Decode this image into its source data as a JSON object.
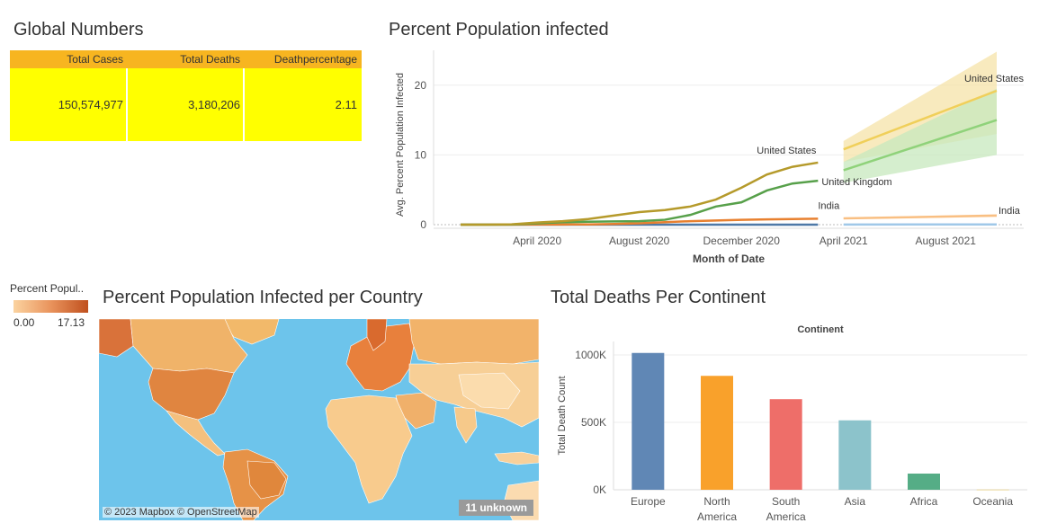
{
  "global": {
    "title": "Global Numbers",
    "headers": [
      "Total Cases",
      "Total Deaths",
      "Deathpercentage"
    ],
    "values": [
      "150,574,977",
      "3,180,206",
      "2.11"
    ]
  },
  "line_chart_title": "Percent Population infected",
  "map": {
    "title": "Percent Population Infected per Country",
    "legend_title": "Percent Popul..",
    "legend_min": "0.00",
    "legend_max": "17.13",
    "credit": "© 2023 Mapbox © OpenStreetMap",
    "unknown": "11 unknown"
  },
  "bar_chart_title": "Total Deaths Per Continent",
  "chart_data": [
    {
      "type": "line",
      "ylabel": "Avg. Percent Population Infected",
      "xlabel": "Month of Date",
      "ylim": [
        0,
        25
      ],
      "yticks": [
        "0",
        "10",
        "20"
      ],
      "xticks": [
        "April 2020",
        "August 2020",
        "December 2020",
        "April 2021",
        "August 2021"
      ],
      "x": [
        "2020-01",
        "2020-02",
        "2020-03",
        "2020-04",
        "2020-05",
        "2020-06",
        "2020-07",
        "2020-08",
        "2020-09",
        "2020-10",
        "2020-11",
        "2020-12",
        "2021-01",
        "2021-02",
        "2021-03"
      ],
      "series": [
        {
          "name": "United States",
          "color": "#b59a2b",
          "values": [
            0,
            0,
            0.05,
            0.3,
            0.5,
            0.8,
            1.3,
            1.8,
            2.1,
            2.6,
            3.6,
            5.3,
            7.2,
            8.3,
            8.9
          ]
        },
        {
          "name": "United Kingdom",
          "color": "#57a04a",
          "values": [
            0,
            0,
            0.02,
            0.2,
            0.35,
            0.42,
            0.46,
            0.5,
            0.7,
            1.4,
            2.6,
            3.2,
            4.9,
            5.9,
            6.3
          ]
        },
        {
          "name": "India",
          "color": "#e8802f",
          "values": [
            0,
            0,
            0,
            0.01,
            0.02,
            0.04,
            0.1,
            0.2,
            0.35,
            0.5,
            0.6,
            0.7,
            0.75,
            0.8,
            0.85
          ]
        },
        {
          "name": "",
          "color": "#4e79a7",
          "values": [
            0,
            0,
            0,
            0,
            0,
            0,
            0,
            0,
            0,
            0,
            0,
            0,
            0,
            0,
            0
          ]
        }
      ],
      "forecast_x": [
        "2021-04",
        "2021-10"
      ],
      "forecast": [
        {
          "name": "United States",
          "color": "#f0cf5a",
          "band_color": "#f5e3a8",
          "values": [
            10.8,
            19.2
          ],
          "low": [
            9.0,
            13.0
          ],
          "high": [
            12.0,
            24.8
          ]
        },
        {
          "name": "",
          "color": "#8fd27a",
          "band_color": "#c7e8bd",
          "values": [
            7.8,
            15.0
          ],
          "low": [
            6.0,
            10.0
          ],
          "high": [
            9.0,
            19.5
          ]
        },
        {
          "name": "India",
          "color": "#f9bf82",
          "band_color": "#fde3c7",
          "values": [
            0.9,
            1.3
          ],
          "low": [
            0.8,
            1.1
          ],
          "high": [
            1.0,
            1.5
          ]
        },
        {
          "name": "",
          "color": "#a0c8e8",
          "band_color": "#d3e6f5",
          "values": [
            0.02,
            0.04
          ],
          "low": [
            0,
            0
          ],
          "high": [
            0.05,
            0.08
          ]
        }
      ],
      "labels": [
        {
          "series": "United States",
          "text": "United States"
        },
        {
          "series": "United Kingdom",
          "text": "United Kingdom"
        },
        {
          "series": "India",
          "text": "India"
        },
        {
          "series": "United States forecast",
          "text": "United States"
        },
        {
          "series": "India forecast",
          "text": "India"
        }
      ]
    },
    {
      "type": "bar",
      "title": "Continent",
      "ylabel": "Total Death Count",
      "ylim": [
        0,
        1100000
      ],
      "yticks": [
        "0K",
        "500K",
        "1000K"
      ],
      "categories": [
        "Europe",
        "North America",
        "South America",
        "Asia",
        "Africa",
        "Oceania"
      ],
      "category_lines": [
        [
          "Europe"
        ],
        [
          "North",
          "America"
        ],
        [
          "South",
          "America"
        ],
        [
          "Asia"
        ],
        [
          "Africa"
        ],
        [
          "Oceania"
        ]
      ],
      "values": [
        1015000,
        845000,
        672000,
        515000,
        120000,
        1200
      ],
      "colors": [
        "#6087b5",
        "#f9a12b",
        "#ee6e69",
        "#8cc3cb",
        "#55ad86",
        "#e9c24a"
      ]
    }
  ]
}
